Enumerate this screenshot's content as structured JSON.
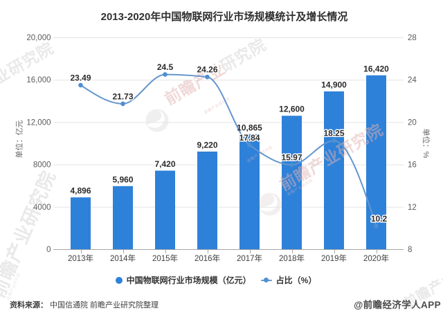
{
  "chart_data": {
    "type": "bar+line",
    "title": "2013-2020年中国物联网行业市场规模统计及增长情况",
    "categories": [
      "2013年",
      "2014年",
      "2015年",
      "2016年",
      "2017年",
      "2018年",
      "2019年",
      "2020年"
    ],
    "series": [
      {
        "name": "中国物联网行业市场规模（亿元）",
        "type": "bar",
        "axis": "left",
        "values": [
          4896,
          5960,
          7420,
          9220,
          10865,
          12600,
          14900,
          16420
        ],
        "labels": [
          "4,896",
          "5,960",
          "7,420",
          "9,220",
          "10,865",
          "12,600",
          "14,900",
          "16,420"
        ],
        "color": "#2e81d8"
      },
      {
        "name": "占比（%）",
        "type": "line",
        "axis": "right",
        "values": [
          23.49,
          21.73,
          24.5,
          24.26,
          17.84,
          15.97,
          18.25,
          10.2
        ],
        "labels": [
          "23.49",
          "21.73",
          "24.5",
          "24.26",
          "17.84",
          "15.97",
          "18.25",
          "10.2"
        ],
        "color": "#6496cd",
        "marker_color": "#4e8ed3"
      }
    ],
    "left_axis": {
      "name": "单位：亿元",
      "min": 0,
      "max": 20000,
      "ticks": [
        "0",
        "4000",
        "8000",
        "12,000",
        "16,000",
        "20,000"
      ]
    },
    "right_axis": {
      "name": "单位：%",
      "min": 8,
      "max": 28,
      "ticks": [
        "8",
        "12",
        "16",
        "20",
        "24",
        "28"
      ]
    },
    "grid": true,
    "legend_position": "bottom",
    "colors": {
      "bar": "#2e81d8",
      "line": "#6b9dd0",
      "marker": "#4e8ed3",
      "gridline": "#e3e3e3",
      "axis": "#a6a6a6",
      "label": "#2b2b2b",
      "tick_label": "#5a5a5a"
    }
  },
  "watermark": {
    "brand_text": "前瞻产业研究院",
    "brand_text_head": "前瞻产业",
    "brand_text_tail": "研究院",
    "small_text": "前瞻产业研究院"
  },
  "footer": {
    "source_label": "资料来源：",
    "source_value": "中国信通院 前瞻产业研究院整理",
    "credit": "@前瞻经济学人APP"
  }
}
